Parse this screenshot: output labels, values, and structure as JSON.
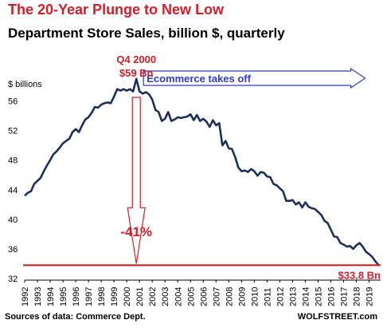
{
  "chart_data": {
    "type": "line",
    "title": "The 20-Year Plunge to New Low",
    "subtitle": "Department Store Sales, billion $, quarterly",
    "ylabel": "$ billions",
    "ylim": [
      32,
      58
    ],
    "yticks": [
      32,
      36,
      40,
      44,
      48,
      52,
      56
    ],
    "xlim": [
      1992,
      2019.9
    ],
    "xticks": [
      "1992",
      "1993",
      "1994",
      "1995",
      "1996",
      "1997",
      "1998",
      "1999",
      "2000",
      "2001",
      "2002",
      "2003",
      "2004",
      "2005",
      "2006",
      "2007",
      "2008",
      "2009",
      "2010",
      "2011",
      "2012",
      "2013",
      "2014",
      "2015",
      "2016",
      "2017",
      "2018",
      "2019"
    ],
    "grid": false,
    "line_color": "#1f2f5c",
    "series": [
      {
        "x": [
          1992.0,
          1992.25,
          1992.5,
          1992.75,
          1993.0,
          1993.25,
          1993.5,
          1993.75,
          1994.0,
          1994.25,
          1994.5,
          1994.75,
          1995.0,
          1995.25,
          1995.5,
          1995.75,
          1996.0,
          1996.25,
          1996.5,
          1996.75,
          1997.0,
          1997.25,
          1997.5,
          1997.75,
          1998.0,
          1998.25,
          1998.5,
          1998.75,
          1999.0,
          1999.25,
          1999.5,
          1999.75,
          2000.0,
          2000.25,
          2000.5,
          2000.75,
          2001.0,
          2001.25,
          2001.5,
          2001.75,
          2002.0,
          2002.25,
          2002.5,
          2002.75,
          2003.0,
          2003.25,
          2003.5,
          2003.75,
          2004.0,
          2004.25,
          2004.5,
          2004.75,
          2005.0,
          2005.25,
          2005.5,
          2005.75,
          2006.0,
          2006.25,
          2006.5,
          2006.75,
          2007.0,
          2007.25,
          2007.5,
          2007.75,
          2008.0,
          2008.25,
          2008.5,
          2008.75,
          2009.0,
          2009.25,
          2009.5,
          2009.75,
          2010.0,
          2010.25,
          2010.5,
          2010.75,
          2011.0,
          2011.25,
          2011.5,
          2011.75,
          2012.0,
          2012.25,
          2012.5,
          2012.75,
          2013.0,
          2013.25,
          2013.5,
          2013.75,
          2014.0,
          2014.25,
          2014.5,
          2014.75,
          2015.0,
          2015.25,
          2015.5,
          2015.75,
          2016.0,
          2016.25,
          2016.5,
          2016.75,
          2017.0,
          2017.25,
          2017.5,
          2017.75,
          2018.0,
          2018.25,
          2018.5,
          2018.75,
          2019.0,
          2019.25,
          2019.5,
          2019.75
        ],
        "values": [
          43.2,
          43.6,
          43.8,
          44.8,
          45.2,
          45.6,
          46.5,
          47.3,
          48.0,
          48.8,
          49.2,
          49.7,
          50.3,
          50.6,
          50.9,
          51.8,
          52.2,
          51.8,
          52.7,
          53.5,
          53.8,
          54.4,
          55.2,
          55.1,
          55.5,
          55.7,
          55.8,
          55.7,
          56.6,
          57.6,
          57.4,
          57.6,
          57.4,
          57.6,
          57.3,
          59.0,
          57.3,
          57.0,
          57.2,
          56.9,
          56.2,
          54.8,
          54.5,
          53.3,
          53.6,
          54.5,
          53.3,
          53.5,
          53.8,
          53.7,
          53.8,
          53.9,
          54.2,
          53.4,
          54.1,
          53.3,
          53.6,
          53.2,
          52.5,
          53.4,
          52.7,
          53.0,
          50.0,
          50.6,
          49.6,
          49.5,
          48.4,
          47.0,
          46.5,
          46.6,
          46.4,
          46.8,
          46.5,
          45.9,
          46.4,
          46.3,
          45.8,
          45.7,
          44.8,
          44.6,
          44.2,
          43.8,
          42.5,
          42.5,
          42.6,
          42.0,
          42.3,
          41.6,
          42.3,
          41.7,
          41.5,
          41.4,
          41.0,
          40.6,
          39.8,
          39.5,
          38.6,
          37.7,
          37.6,
          36.8,
          36.6,
          36.3,
          36.4,
          36.0,
          36.5,
          36.8,
          36.3,
          35.6,
          35.3,
          34.9,
          34.3,
          33.8
        ]
      }
    ],
    "annotations": {
      "peak_label_line1": "Q4 2000",
      "peak_label_line2": "$59 Bn",
      "peak_x": 2000.75,
      "peak_y": 59,
      "ecommerce_label": "Ecommerce takes off",
      "ecommerce_arrow_from_x": 2001,
      "ecommerce_arrow_to_x": 2019,
      "ecommerce_arrow_y": 58,
      "drop_label": "-41%",
      "drop_arrow_x": 2000.75,
      "drop_arrow_to_y": 33.8,
      "low_label": "$33.8 Bn",
      "low_line_y": 33.8,
      "low_line_color": "#d0202a",
      "highlight_color": "#d0202a",
      "ecommerce_color": "#2f3dbf"
    }
  },
  "footer": {
    "source": "Sources of data: Commerce Dept.",
    "brand": "WOLFSTREET.com"
  }
}
